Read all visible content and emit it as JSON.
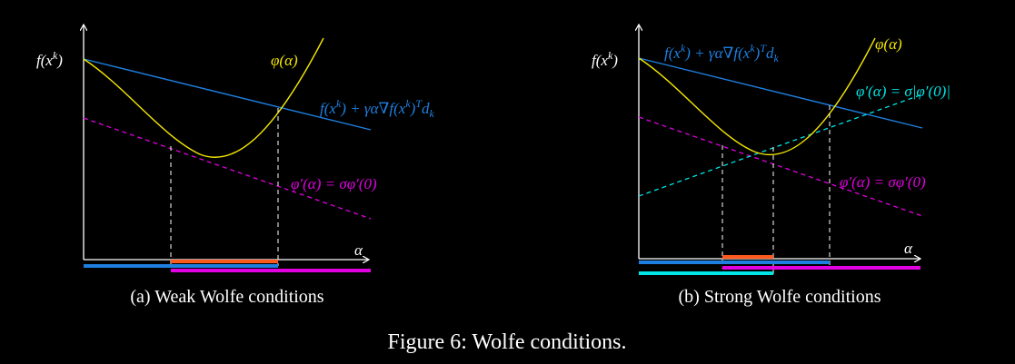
{
  "figure": {
    "caption": "Figure 6: Wolfe conditions."
  },
  "colors": {
    "background": "#000000",
    "axis": "#ffffff",
    "phi_curve": "#f2e600",
    "armijo_line": "#1e7fe0",
    "curvature_line": "#e000e0",
    "strong_curvature_line": "#00e5e5",
    "accept_interval": "#ff5a1e",
    "guide_dashes": "#ffffff"
  },
  "panels": [
    {
      "id": "a",
      "subcaption": "(a) Weak Wolfe conditions",
      "y_tick_label": "f(x^k)",
      "x_axis_label": "α",
      "labels": {
        "phi": "φ(α)",
        "armijo": "f(x^k) + γα∇f(x^k)^T d_k",
        "curvature": "φ′(α) = σφ′(0)"
      }
    },
    {
      "id": "b",
      "subcaption": "(b) Strong Wolfe conditions",
      "y_tick_label": "f(x^k)",
      "x_axis_label": "α",
      "labels": {
        "phi": "φ(α)",
        "armijo": "f(x^k) + γα∇f(x^k)^T d_k",
        "curvature": "φ′(α) = σφ′(0)",
        "strong_curvature": "φ′(α) = σ|φ′(0)|"
      }
    }
  ]
}
